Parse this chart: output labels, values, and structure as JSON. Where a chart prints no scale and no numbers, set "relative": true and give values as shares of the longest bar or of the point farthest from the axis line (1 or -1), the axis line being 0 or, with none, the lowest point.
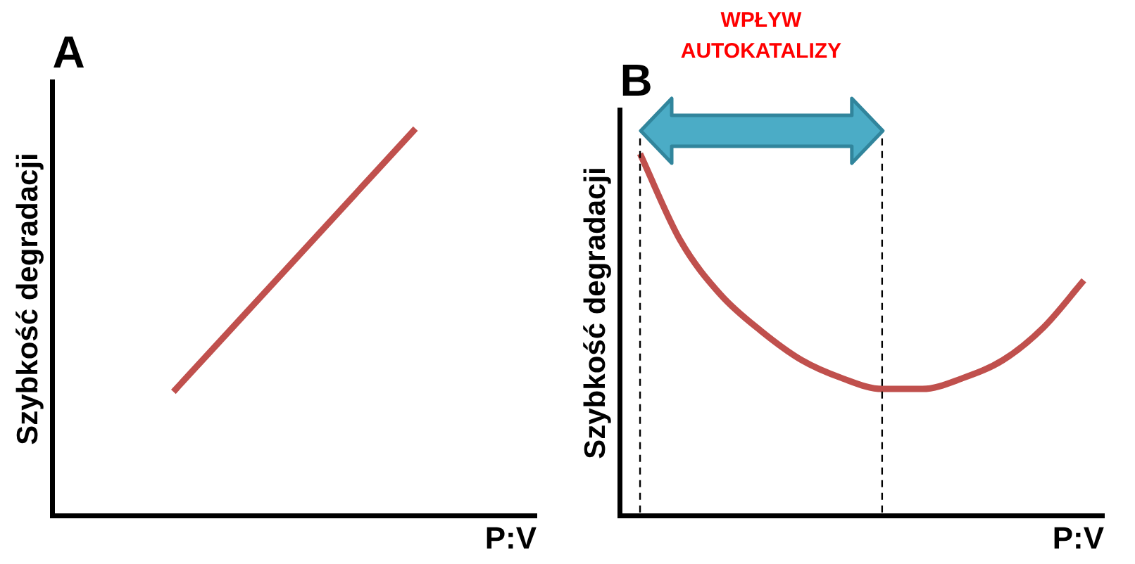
{
  "chart_data": [
    {
      "type": "line",
      "title": "A",
      "xlabel": "P:V",
      "ylabel": "Szybkość degradacji",
      "relative": true,
      "categories": [
        null,
        null
      ],
      "series": [
        {
          "color": "#c0504d",
          "values": [
            0.32,
            1
          ]
        }
      ],
      "grid": false,
      "legend": false,
      "tick_labels": false,
      "marker": "none",
      "line_style": "solid"
    },
    {
      "type": "line",
      "title": "B",
      "xlabel": "P:V",
      "ylabel": "Szybkość degradacji",
      "relative": true,
      "annotations": [
        "WPŁYW AUTOKATALIZY"
      ],
      "categories": [
        null,
        null,
        null,
        null,
        null,
        null,
        null,
        null,
        null,
        null,
        null,
        null
      ],
      "series": [
        {
          "color": "#c0504d",
          "values": [
            1,
            0.76,
            0.61,
            0.51,
            0.43,
            0.38,
            0.35,
            0.35,
            0.38,
            0.43,
            0.52,
            0.65
          ]
        }
      ],
      "grid": false,
      "legend": false,
      "tick_labels": false,
      "marker": "none",
      "line_style": "solid"
    }
  ]
}
